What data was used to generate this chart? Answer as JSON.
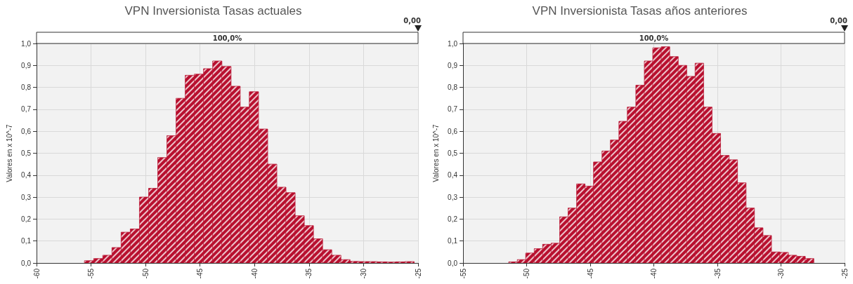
{
  "chart_data": [
    {
      "type": "histogram",
      "title": "VPN Inversionista Tasas actuales",
      "ylabel": "Valores en x 10^-7",
      "bins": [
        -55.6,
        -54.76,
        -53.92,
        -53.08,
        -52.24,
        -51.4,
        -50.56,
        -49.72,
        -48.88,
        -48.04,
        -47.2,
        -46.36,
        -45.52,
        -44.68,
        -43.84,
        -43,
        -42.16,
        -41.32,
        -40.48,
        -39.64,
        -38.8,
        -37.96,
        -37.12,
        -36.28,
        -35.44,
        -34.6,
        -33.76,
        -32.92,
        -32.08,
        -31.24,
        -30.4,
        -29.56,
        -28.72,
        -27.88,
        -27.04,
        -26.2,
        -25.36
      ],
      "values": [
        0.01,
        0.02,
        0.035,
        0.07,
        0.14,
        0.155,
        0.3,
        0.34,
        0.48,
        0.58,
        0.75,
        0.855,
        0.86,
        0.885,
        0.92,
        0.895,
        0.805,
        0.71,
        0.78,
        0.61,
        0.45,
        0.345,
        0.32,
        0.215,
        0.17,
        0.11,
        0.06,
        0.035,
        0.015,
        0.007,
        0.006,
        0.006,
        0.005,
        0.004,
        0.005,
        0.006
      ],
      "color": "#b8102f",
      "xlim": [
        -60,
        -25
      ],
      "xticks": [
        -60,
        -55,
        -50,
        -45,
        -40,
        -35,
        -30,
        -25
      ],
      "ylim": [
        0,
        1
      ],
      "yticks": [
        {
          "value": 0,
          "label": "0,0"
        },
        {
          "value": 0.1,
          "label": "0,1"
        },
        {
          "value": 0.2,
          "label": "0,2"
        },
        {
          "value": 0.3,
          "label": "0,3"
        },
        {
          "value": 0.4,
          "label": "0,4"
        },
        {
          "value": 0.5,
          "label": "0,5"
        },
        {
          "value": 0.6,
          "label": "0,6"
        },
        {
          "value": 0.7,
          "label": "0,7"
        },
        {
          "value": 0.8,
          "label": "0,8"
        },
        {
          "value": 0.9,
          "label": "0,9"
        },
        {
          "value": 1,
          "label": "1,0"
        }
      ],
      "grid": true,
      "annotations": [
        "100,0%",
        "0,00"
      ]
    },
    {
      "type": "histogram",
      "title": "VPN Inversionista Tasas años anteriores",
      "ylabel": "Valores en x 10^-7",
      "bins": [
        -51.4,
        -50.73,
        -50.07,
        -49.4,
        -48.74,
        -48.07,
        -47.4,
        -46.74,
        -46.07,
        -45.41,
        -44.74,
        -44.07,
        -43.41,
        -42.74,
        -42.08,
        -41.41,
        -40.74,
        -40.08,
        -39.41,
        -38.75,
        -38.08,
        -37.41,
        -36.75,
        -36.08,
        -35.42,
        -34.75,
        -34.08,
        -33.42,
        -32.75,
        -32.09,
        -31.42,
        -30.75,
        -30.09,
        -29.42,
        -28.76,
        -28.09,
        -27.42
      ],
      "values": [
        0.005,
        0.015,
        0.045,
        0.065,
        0.085,
        0.09,
        0.21,
        0.25,
        0.36,
        0.35,
        0.46,
        0.51,
        0.56,
        0.645,
        0.71,
        0.81,
        0.92,
        0.98,
        0.985,
        0.94,
        0.9,
        0.85,
        0.91,
        0.71,
        0.59,
        0.49,
        0.47,
        0.365,
        0.25,
        0.16,
        0.125,
        0.05,
        0.048,
        0.035,
        0.03,
        0.02
      ],
      "color": "#b8102f",
      "xlim": [
        -55,
        -25
      ],
      "xticks": [
        -55,
        -50,
        -45,
        -40,
        -35,
        -30,
        -25
      ],
      "ylim": [
        0,
        1
      ],
      "yticks": [
        {
          "value": 0,
          "label": "0,0"
        },
        {
          "value": 0.1,
          "label": "0,1"
        },
        {
          "value": 0.2,
          "label": "0,2"
        },
        {
          "value": 0.3,
          "label": "0,3"
        },
        {
          "value": 0.4,
          "label": "0,4"
        },
        {
          "value": 0.5,
          "label": "0,5"
        },
        {
          "value": 0.6,
          "label": "0,6"
        },
        {
          "value": 0.7,
          "label": "0,7"
        },
        {
          "value": 0.8,
          "label": "0,8"
        },
        {
          "value": 0.9,
          "label": "0,9"
        },
        {
          "value": 1,
          "label": "1,0"
        }
      ],
      "grid": true,
      "annotations": [
        "100,0%",
        "0,00"
      ]
    }
  ]
}
